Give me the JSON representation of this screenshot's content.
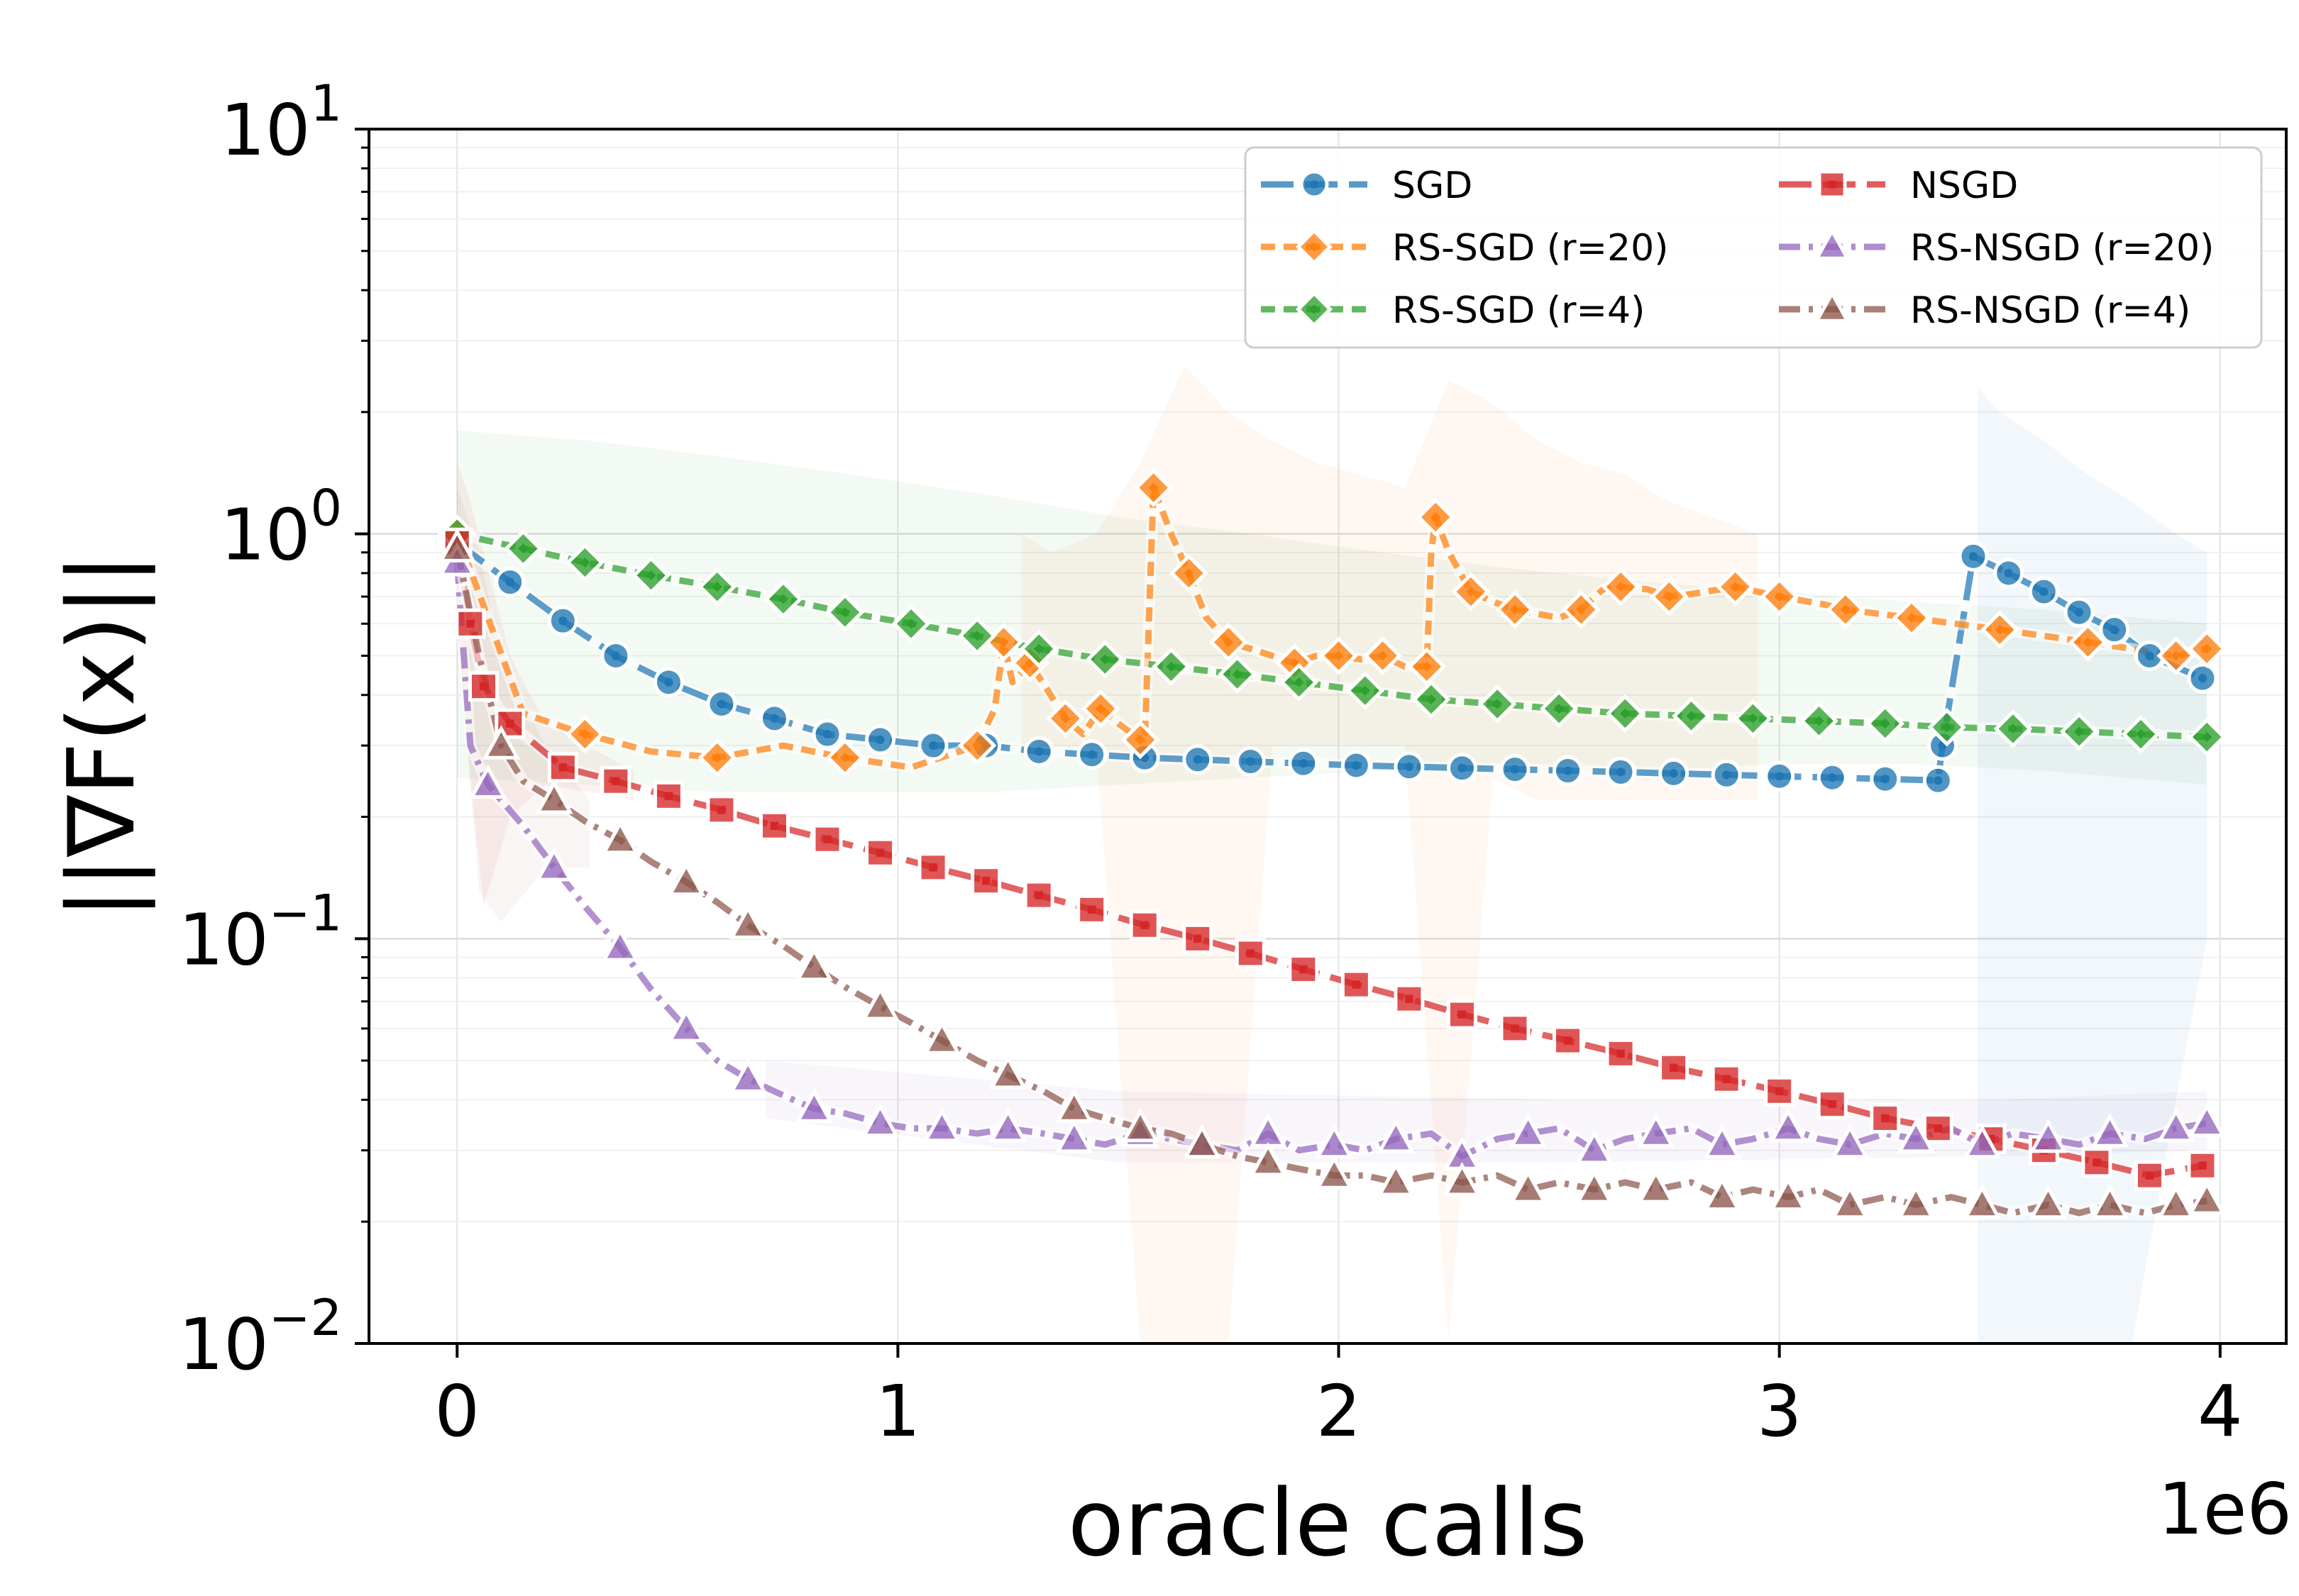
{
  "chart_data": {
    "type": "line",
    "title": "",
    "xlabel": "oracle calls",
    "ylabel": "||∇F(x)||",
    "x_offset_label": "1e6",
    "x_scale_factor": 1000000,
    "xlim": [
      -0.2,
      4.15
    ],
    "ylim": [
      0.01,
      10
    ],
    "yscale": "log",
    "grid": true,
    "legend_position": "top-right",
    "x_ticks": [
      {
        "value": 0,
        "label": "0"
      },
      {
        "value": 1,
        "label": "1"
      },
      {
        "value": 2,
        "label": "2"
      },
      {
        "value": 3,
        "label": "3"
      },
      {
        "value": 4,
        "label": "4"
      }
    ],
    "y_ticks": [
      {
        "value": 10,
        "base": "10",
        "exp": "1"
      },
      {
        "value": 1,
        "base": "10",
        "exp": "0"
      },
      {
        "value": 0.1,
        "base": "10",
        "exp": "−1"
      },
      {
        "value": 0.01,
        "base": "10",
        "exp": "−2"
      }
    ],
    "series": [
      {
        "name": "SGD",
        "color": "#1f77b4",
        "marker": "circle",
        "dash": "long",
        "band": {
          "x": [
            3.45,
            3.5,
            3.6,
            3.7,
            3.8,
            3.9,
            3.97
          ],
          "lo": [
            0.01,
            0.01,
            0.01,
            0.01,
            0.01,
            0.04,
            0.1
          ],
          "hi": [
            2.3,
            2.0,
            1.7,
            1.4,
            1.2,
            1.0,
            0.9
          ]
        },
        "x": [
          0,
          0.12,
          0.24,
          0.36,
          0.48,
          0.6,
          0.72,
          0.84,
          0.96,
          1.08,
          1.2,
          1.32,
          1.44,
          1.56,
          1.68,
          1.8,
          1.92,
          2.04,
          2.16,
          2.28,
          2.4,
          2.52,
          2.64,
          2.76,
          2.88,
          3.0,
          3.12,
          3.24,
          3.36,
          3.37,
          3.44,
          3.52,
          3.6,
          3.68,
          3.76,
          3.84,
          3.96
        ],
        "y": [
          0.95,
          0.76,
          0.61,
          0.5,
          0.43,
          0.38,
          0.35,
          0.32,
          0.31,
          0.3,
          0.3,
          0.29,
          0.285,
          0.28,
          0.277,
          0.274,
          0.271,
          0.268,
          0.266,
          0.264,
          0.262,
          0.26,
          0.258,
          0.256,
          0.254,
          0.252,
          0.25,
          0.248,
          0.246,
          0.3,
          0.88,
          0.8,
          0.72,
          0.64,
          0.58,
          0.5,
          0.44
        ]
      },
      {
        "name": "RS-SGD (r=20)",
        "color": "#ff7f0e",
        "marker": "diamond",
        "dash": "short",
        "band": {
          "x": [
            1.28,
            1.35,
            1.45,
            1.55,
            1.65,
            1.75,
            1.85,
            1.95,
            2.05,
            2.15,
            2.25,
            2.35,
            2.45,
            2.55,
            2.65,
            2.75,
            2.85,
            2.95
          ],
          "lo": [
            0.3,
            0.3,
            0.3,
            0.01,
            0.01,
            0.01,
            0.3,
            0.3,
            0.3,
            0.3,
            0.01,
            0.25,
            0.22,
            0.22,
            0.22,
            0.22,
            0.22,
            0.22
          ],
          "hi": [
            1.0,
            0.9,
            1.0,
            1.5,
            2.6,
            2.0,
            1.7,
            1.5,
            1.4,
            1.3,
            2.4,
            2.1,
            1.7,
            1.5,
            1.4,
            1.2,
            1.1,
            1.0
          ]
        },
        "x": [
          0,
          0.15,
          0.29,
          0.44,
          0.59,
          0.74,
          0.88,
          1.03,
          1.18,
          1.22,
          1.24,
          1.26,
          1.3,
          1.34,
          1.38,
          1.42,
          1.46,
          1.5,
          1.55,
          1.56,
          1.58,
          1.62,
          1.66,
          1.7,
          1.75,
          1.8,
          1.9,
          1.95,
          2.0,
          2.05,
          2.1,
          2.15,
          2.2,
          2.21,
          2.22,
          2.25,
          2.3,
          2.35,
          2.4,
          2.5,
          2.55,
          2.6,
          2.64,
          2.7,
          2.75,
          2.8,
          2.9,
          2.95,
          3.0,
          3.1,
          3.15,
          3.2,
          3.3,
          3.4,
          3.5,
          3.6,
          3.7,
          3.8,
          3.9,
          3.97
        ],
        "y": [
          1.0,
          0.36,
          0.32,
          0.29,
          0.28,
          0.3,
          0.28,
          0.265,
          0.3,
          0.37,
          0.54,
          0.43,
          0.48,
          0.41,
          0.35,
          0.32,
          0.37,
          0.34,
          0.31,
          0.3,
          1.3,
          1.0,
          0.8,
          0.62,
          0.54,
          0.52,
          0.48,
          0.5,
          0.5,
          0.49,
          0.5,
          0.47,
          0.47,
          0.9,
          1.1,
          0.9,
          0.72,
          0.68,
          0.65,
          0.62,
          0.65,
          0.73,
          0.74,
          0.73,
          0.7,
          0.71,
          0.74,
          0.72,
          0.7,
          0.67,
          0.65,
          0.64,
          0.62,
          0.6,
          0.58,
          0.56,
          0.54,
          0.52,
          0.5,
          0.52
        ]
      },
      {
        "name": "RS-SGD (r=4)",
        "color": "#2ca02c",
        "marker": "diamond",
        "dash": "short",
        "band": {
          "x": [
            0,
            0.3,
            0.6,
            0.9,
            1.2,
            1.5,
            1.8,
            2.1,
            2.4,
            2.7,
            3.0,
            3.3,
            3.6,
            3.97
          ],
          "lo": [
            0.25,
            0.24,
            0.23,
            0.23,
            0.23,
            0.24,
            0.25,
            0.26,
            0.26,
            0.26,
            0.27,
            0.27,
            0.26,
            0.24
          ],
          "hi": [
            1.8,
            1.7,
            1.55,
            1.4,
            1.25,
            1.1,
            1.0,
            0.9,
            0.82,
            0.76,
            0.72,
            0.68,
            0.65,
            0.6
          ]
        },
        "x": [
          0,
          0.15,
          0.29,
          0.44,
          0.59,
          0.74,
          0.88,
          1.03,
          1.18,
          1.32,
          1.47,
          1.62,
          1.77,
          1.91,
          2.06,
          2.21,
          2.36,
          2.5,
          2.65,
          2.8,
          2.94,
          3.09,
          3.24,
          3.38,
          3.53,
          3.68,
          3.82,
          3.97
        ],
        "y": [
          1.0,
          0.92,
          0.85,
          0.79,
          0.74,
          0.69,
          0.64,
          0.6,
          0.56,
          0.52,
          0.49,
          0.47,
          0.45,
          0.43,
          0.41,
          0.39,
          0.38,
          0.37,
          0.36,
          0.355,
          0.35,
          0.345,
          0.34,
          0.333,
          0.33,
          0.325,
          0.32,
          0.315
        ]
      },
      {
        "name": "NSGD",
        "color": "#d62728",
        "marker": "square",
        "dash": "long",
        "band": {
          "x": [
            0,
            0.03,
            0.06,
            0.12,
            0.2,
            0.4
          ],
          "lo": [
            0.6,
            0.25,
            0.12,
            0.2,
            0.24,
            0.22
          ],
          "hi": [
            1.5,
            1.2,
            0.9,
            0.5,
            0.34,
            0.26
          ]
        },
        "x": [
          0,
          0.03,
          0.06,
          0.12,
          0.24,
          0.36,
          0.48,
          0.6,
          0.72,
          0.84,
          0.96,
          1.08,
          1.2,
          1.32,
          1.44,
          1.56,
          1.68,
          1.8,
          1.92,
          2.04,
          2.16,
          2.28,
          2.4,
          2.52,
          2.64,
          2.76,
          2.88,
          3.0,
          3.12,
          3.24,
          3.36,
          3.48,
          3.6,
          3.72,
          3.84,
          3.96
        ],
        "y": [
          0.95,
          0.6,
          0.42,
          0.34,
          0.265,
          0.245,
          0.225,
          0.208,
          0.19,
          0.176,
          0.163,
          0.15,
          0.139,
          0.128,
          0.118,
          0.108,
          0.1,
          0.092,
          0.084,
          0.077,
          0.071,
          0.065,
          0.06,
          0.056,
          0.052,
          0.048,
          0.045,
          0.042,
          0.039,
          0.036,
          0.034,
          0.032,
          0.03,
          0.028,
          0.026,
          0.0275
        ]
      },
      {
        "name": "RS-NSGD (r=20)",
        "color": "#9467bd",
        "marker": "triangle",
        "dash": "dashdot",
        "band": {
          "x": [
            0.7,
            1.5,
            2.5,
            3.5,
            3.97
          ],
          "lo": [
            0.036,
            0.028,
            0.028,
            0.029,
            0.03
          ],
          "hi": [
            0.05,
            0.042,
            0.04,
            0.04,
            0.042
          ]
        },
        "x": [
          0,
          0.03,
          0.07,
          0.15,
          0.22,
          0.29,
          0.37,
          0.44,
          0.52,
          0.59,
          0.66,
          0.74,
          0.81,
          0.88,
          0.96,
          1.03,
          1.1,
          1.18,
          1.25,
          1.33,
          1.4,
          1.47,
          1.55,
          1.62,
          1.69,
          1.77,
          1.84,
          1.91,
          1.99,
          2.06,
          2.13,
          2.21,
          2.28,
          2.36,
          2.43,
          2.5,
          2.58,
          2.65,
          2.72,
          2.8,
          2.87,
          2.94,
          3.02,
          3.09,
          3.16,
          3.24,
          3.31,
          3.39,
          3.46,
          3.53,
          3.61,
          3.68,
          3.75,
          3.83,
          3.9,
          3.97
        ],
        "y": [
          0.85,
          0.3,
          0.24,
          0.19,
          0.15,
          0.12,
          0.095,
          0.075,
          0.06,
          0.05,
          0.045,
          0.041,
          0.038,
          0.037,
          0.035,
          0.034,
          0.034,
          0.033,
          0.034,
          0.033,
          0.032,
          0.031,
          0.033,
          0.032,
          0.031,
          0.03,
          0.033,
          0.03,
          0.031,
          0.03,
          0.032,
          0.033,
          0.029,
          0.032,
          0.033,
          0.034,
          0.03,
          0.032,
          0.033,
          0.034,
          0.031,
          0.032,
          0.034,
          0.032,
          0.031,
          0.033,
          0.032,
          0.034,
          0.031,
          0.033,
          0.032,
          0.031,
          0.033,
          0.032,
          0.034,
          0.035
        ]
      },
      {
        "name": "RS-NSGD (r=4)",
        "color": "#8c564b",
        "marker": "triangle",
        "dash": "dashdot",
        "band": {
          "x": [
            0,
            0.05,
            0.1,
            0.2,
            0.3
          ],
          "lo": [
            0.6,
            0.13,
            0.11,
            0.15,
            0.15
          ],
          "hi": [
            1.3,
            0.9,
            0.5,
            0.3,
            0.22
          ]
        },
        "x": [
          0,
          0.05,
          0.1,
          0.15,
          0.22,
          0.29,
          0.37,
          0.44,
          0.52,
          0.59,
          0.66,
          0.74,
          0.81,
          0.88,
          0.96,
          1.03,
          1.1,
          1.18,
          1.25,
          1.33,
          1.4,
          1.47,
          1.55,
          1.62,
          1.69,
          1.77,
          1.84,
          1.91,
          1.99,
          2.06,
          2.13,
          2.21,
          2.28,
          2.36,
          2.43,
          2.5,
          2.58,
          2.65,
          2.72,
          2.8,
          2.87,
          2.94,
          3.02,
          3.09,
          3.16,
          3.24,
          3.31,
          3.39,
          3.46,
          3.53,
          3.61,
          3.68,
          3.75,
          3.83,
          3.9,
          3.97
        ],
        "y": [
          0.92,
          0.5,
          0.3,
          0.245,
          0.22,
          0.195,
          0.175,
          0.155,
          0.138,
          0.123,
          0.108,
          0.096,
          0.085,
          0.076,
          0.068,
          0.062,
          0.056,
          0.05,
          0.046,
          0.042,
          0.038,
          0.036,
          0.034,
          0.033,
          0.031,
          0.029,
          0.028,
          0.027,
          0.026,
          0.026,
          0.025,
          0.026,
          0.025,
          0.026,
          0.024,
          0.025,
          0.024,
          0.025,
          0.024,
          0.025,
          0.023,
          0.024,
          0.023,
          0.024,
          0.022,
          0.023,
          0.022,
          0.023,
          0.022,
          0.021,
          0.022,
          0.021,
          0.022,
          0.021,
          0.022,
          0.0225
        ]
      }
    ],
    "legend": {
      "columns": [
        [
          "SGD",
          "RS-SGD (r=20)",
          "RS-SGD (r=4)"
        ],
        [
          "NSGD",
          "RS-NSGD (r=20)",
          "RS-NSGD (r=4)"
        ]
      ]
    }
  }
}
